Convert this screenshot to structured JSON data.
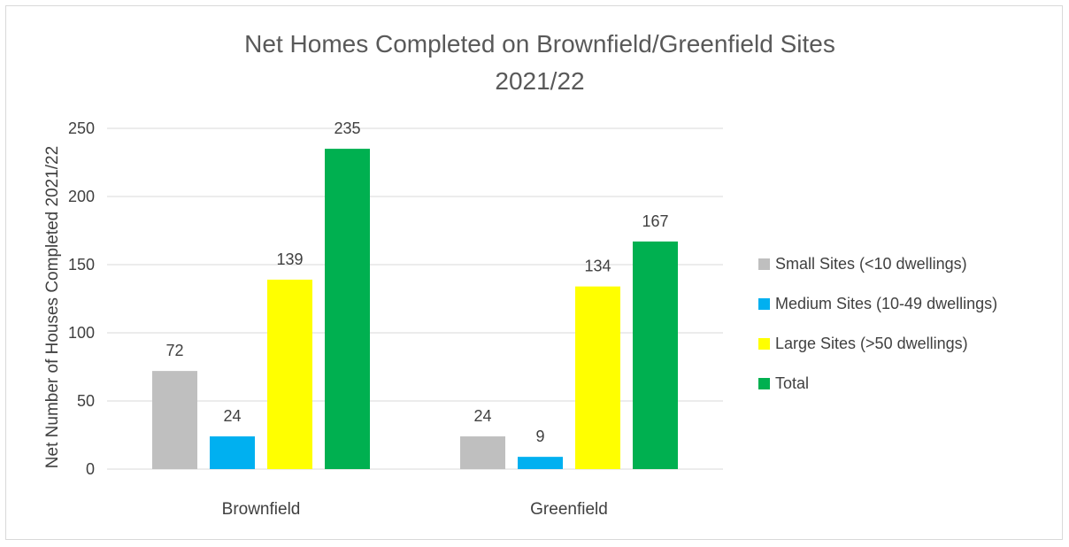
{
  "chart_data": {
    "type": "bar",
    "title": [
      "Net Homes Completed on Brownfield/Greenfield Sites",
      "2021/22"
    ],
    "xlabel": "",
    "ylabel": "Net Number of Houses Completed 2021/22",
    "categories": [
      "Brownfield",
      "Greenfield"
    ],
    "ylim": [
      0,
      250
    ],
    "yticks": [
      0,
      50,
      100,
      150,
      200,
      250
    ],
    "grid": true,
    "legend_position": "right",
    "data_labels": true,
    "series": [
      {
        "name": "Small Sites (<10 dwellings)",
        "color": "#bfbfbf",
        "values": [
          72,
          24
        ]
      },
      {
        "name": "Medium Sites (10-49 dwellings)",
        "color": "#00b0f0",
        "values": [
          24,
          9
        ]
      },
      {
        "name": "Large Sites (>50 dwellings)",
        "color": "#ffff00",
        "values": [
          139,
          134
        ]
      },
      {
        "name": "Total",
        "color": "#00b050",
        "values": [
          235,
          167
        ]
      }
    ]
  }
}
